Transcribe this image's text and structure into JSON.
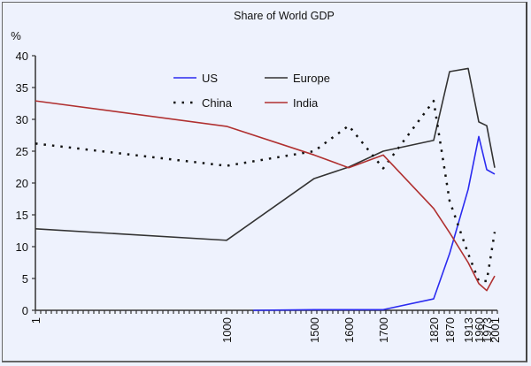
{
  "chart_data": {
    "type": "line",
    "title": "Share of World GDP",
    "ylabel": "%",
    "xlabel": "",
    "ylim": [
      0,
      40
    ],
    "yticks": [
      0,
      5,
      10,
      15,
      20,
      25,
      30,
      35,
      40
    ],
    "x_axis_note": "categorical axis; each category has a position measured in minor-tick units from the origin tick (0) to the last tick (87)",
    "x_tick_count": 87,
    "categories": [
      "1",
      "1000",
      "1500",
      "1600",
      "1700",
      "1820",
      "1870",
      "1913",
      "1960",
      "1973",
      "2001"
    ],
    "category_tick_positions": [
      0,
      36,
      52.5,
      59,
      65.5,
      75,
      78,
      81.5,
      83.5,
      85,
      86.5
    ],
    "grid": false,
    "legend": {
      "placement": "top-center",
      "entries": [
        {
          "name": "US",
          "color": "#2b2bf0",
          "style": "solid"
        },
        {
          "name": "Europe",
          "color": "#333333",
          "style": "solid"
        },
        {
          "name": "China",
          "color": "#111111",
          "style": "dotted"
        },
        {
          "name": "India",
          "color": "#b03030",
          "style": "solid"
        }
      ]
    },
    "series": [
      {
        "name": "US",
        "color": "#2b2bf0",
        "style": "solid",
        "start_tick_position": 41,
        "values": [
          null,
          null,
          0.1,
          0.1,
          0.1,
          1.8,
          8.9,
          19.0,
          27.3,
          22.1,
          21.4
        ]
      },
      {
        "name": "Europe",
        "color": "#333333",
        "style": "solid",
        "values": [
          12.8,
          11.0,
          20.7,
          22.5,
          25.0,
          26.7,
          37.5,
          38.0,
          29.6,
          29.0,
          22.4
        ]
      },
      {
        "name": "China",
        "color": "#111111",
        "style": "dotted",
        "values": [
          26.2,
          22.7,
          25.0,
          29.0,
          22.3,
          32.9,
          17.2,
          8.9,
          4.6,
          4.6,
          12.3
        ]
      },
      {
        "name": "India",
        "color": "#b03030",
        "style": "solid",
        "values": [
          32.9,
          28.9,
          24.4,
          22.4,
          24.4,
          16.0,
          12.2,
          7.5,
          4.2,
          3.1,
          5.4
        ]
      }
    ]
  }
}
